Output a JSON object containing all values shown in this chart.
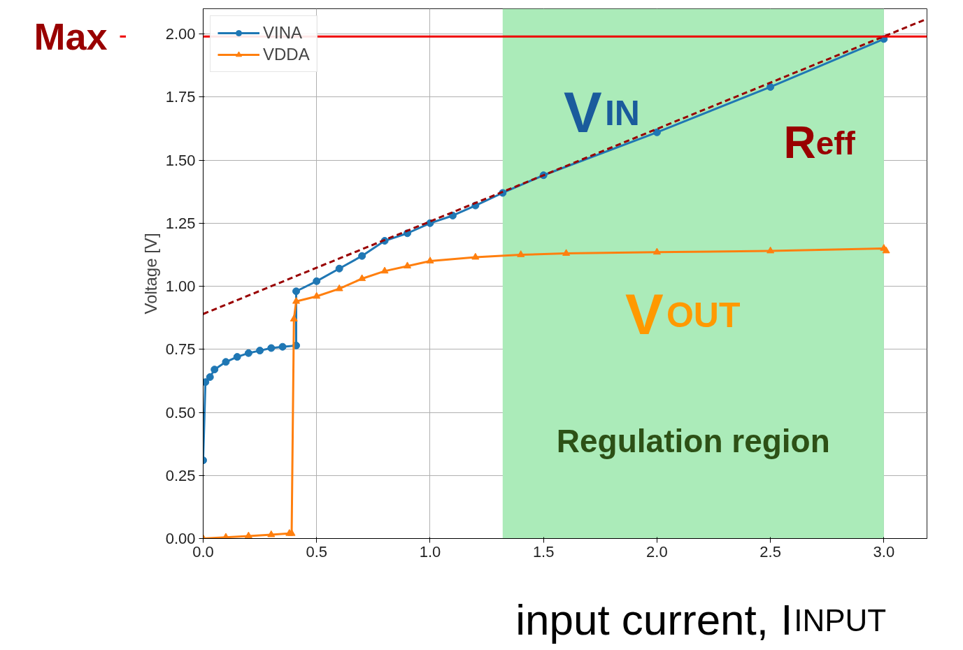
{
  "chart_data": {
    "type": "line",
    "xlabel": "input current, I$_{INPUT}$",
    "ylabel": "Voltage [V]",
    "xlim": [
      0,
      3.19
    ],
    "ylim": [
      0,
      2.1
    ],
    "xticks": [
      {
        "value": 0,
        "label": "0.0"
      },
      {
        "value": 0.5,
        "label": "0.5"
      },
      {
        "value": 1,
        "label": "1.0"
      },
      {
        "value": 1.5,
        "label": "1.5"
      },
      {
        "value": 2,
        "label": "2.0"
      },
      {
        "value": 2.5,
        "label": "2.5"
      },
      {
        "value": 3,
        "label": "3.0"
      }
    ],
    "yticks": [
      {
        "value": 0,
        "label": "0.00"
      },
      {
        "value": 0.25,
        "label": "0.25"
      },
      {
        "value": 0.5,
        "label": "0.50"
      },
      {
        "value": 0.75,
        "label": "0.75"
      },
      {
        "value": 1,
        "label": "1.00"
      },
      {
        "value": 1.25,
        "label": "1.25"
      },
      {
        "value": 1.5,
        "label": "1.50"
      },
      {
        "value": 1.75,
        "label": "1.75"
      },
      {
        "value": 2,
        "label": "2.00"
      }
    ],
    "grid": true,
    "legend": "top left",
    "series": [
      {
        "name": "VINA",
        "color": "#1f77b4",
        "marker": "circle",
        "x": [
          0,
          0.01,
          0.03,
          0.05,
          0.1,
          0.15,
          0.2,
          0.25,
          0.3,
          0.35,
          0.41,
          0.41,
          0.5,
          0.6,
          0.7,
          0.8,
          0.9,
          1.0,
          1.1,
          1.2,
          1.32,
          1.5,
          2.0,
          2.5,
          3.0
        ],
        "values": [
          0.31,
          0.62,
          0.64,
          0.67,
          0.7,
          0.72,
          0.735,
          0.745,
          0.755,
          0.76,
          0.765,
          0.98,
          1.02,
          1.07,
          1.12,
          1.18,
          1.21,
          1.25,
          1.28,
          1.32,
          1.37,
          1.44,
          1.61,
          1.79,
          1.98
        ]
      },
      {
        "name": "VDDA",
        "color": "#ff7f0e",
        "marker": "triangle",
        "x": [
          0,
          0.1,
          0.2,
          0.3,
          0.38,
          0.39,
          0.4,
          0.41,
          0.5,
          0.6,
          0.7,
          0.8,
          0.9,
          1.0,
          1.2,
          1.4,
          1.6,
          2.0,
          2.5,
          3.0,
          3.01
        ],
        "values": [
          0,
          0.005,
          0.01,
          0.015,
          0.02,
          0.02,
          0.87,
          0.94,
          0.96,
          0.99,
          1.03,
          1.06,
          1.08,
          1.1,
          1.115,
          1.125,
          1.13,
          1.135,
          1.14,
          1.15,
          1.14
        ]
      },
      {
        "type": "line",
        "color": "#990000",
        "marker": "none",
        "line_style": "dashed",
        "x": [
          0,
          3.19
        ],
        "values": [
          0.89,
          2.06
        ]
      }
    ],
    "ref_lines": [
      {
        "axis": "y",
        "value": 1.99,
        "label": "Max",
        "color": "#ee0000"
      }
    ],
    "bands": [
      {
        "axis": "x",
        "from": 1.32,
        "to": 3.0,
        "label": "Regulation region",
        "color": "#abebb9"
      }
    ],
    "annotations": [
      "V$_{IN}$",
      "R$_{eff}$",
      "V$_{OUT}$"
    ]
  }
}
